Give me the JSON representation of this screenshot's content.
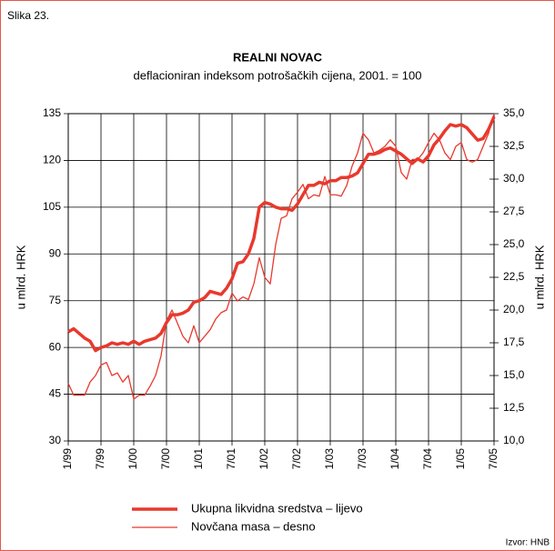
{
  "chart_data": {
    "type": "line",
    "figure_label": "Slika 23.",
    "title": "REALNI NOVAC",
    "subtitle": "deflacioniran indeksom potrošačkih cijena, 2001. = 100",
    "ylabel": "u mlrd. HRK",
    "y2label": "u mlrd. HRK",
    "source": "Izvor: HNB",
    "categories": [
      "1/99",
      null,
      null,
      null,
      null,
      null,
      "7/99",
      null,
      null,
      null,
      null,
      null,
      "1/00",
      null,
      null,
      null,
      null,
      null,
      "7/00",
      null,
      null,
      null,
      null,
      null,
      "1/01",
      null,
      null,
      null,
      null,
      null,
      "7/01",
      null,
      null,
      null,
      null,
      null,
      "1/02",
      null,
      null,
      null,
      null,
      null,
      "7/02",
      null,
      null,
      null,
      null,
      null,
      "1/03",
      null,
      null,
      null,
      null,
      null,
      "7/03",
      null,
      null,
      null,
      null,
      null,
      "1/04",
      null,
      null,
      null,
      null,
      null,
      "7/04",
      null,
      null,
      null,
      null,
      null,
      "1/05",
      null,
      null,
      null,
      null,
      null,
      "7/05"
    ],
    "ylim": [
      30,
      135
    ],
    "yticks": [
      30,
      45,
      60,
      75,
      90,
      105,
      120,
      135
    ],
    "y2lim": [
      10,
      35
    ],
    "y2ticks": [
      {
        "value": 10,
        "label": "10,0"
      },
      {
        "value": 12.5,
        "label": "12,5"
      },
      {
        "value": 15,
        "label": "15,0"
      },
      {
        "value": 17.5,
        "label": "17,5"
      },
      {
        "value": 20,
        "label": "20,0"
      },
      {
        "value": 22.5,
        "label": "22,5"
      },
      {
        "value": 25,
        "label": "25,0"
      },
      {
        "value": 27.5,
        "label": "27,5"
      },
      {
        "value": 30,
        "label": "30,0"
      },
      {
        "value": 32.5,
        "label": "32,5"
      },
      {
        "value": 35,
        "label": "35,0"
      }
    ],
    "grid": true,
    "legend": "bottom",
    "series": [
      {
        "name": "Ukupna likvidna sredstva – lijevo",
        "color": "#e8392d",
        "axis": "y",
        "values": [
          65,
          66,
          64.5,
          63,
          62,
          59,
          60,
          60.5,
          61.5,
          61,
          61.5,
          61,
          62,
          61,
          62,
          62.5,
          63,
          64.5,
          68,
          70.5,
          70.5,
          71,
          72,
          74.5,
          75,
          76,
          78,
          77.5,
          77,
          79,
          82,
          87,
          87.5,
          90,
          95,
          105,
          106.5,
          106,
          105,
          104.5,
          104.5,
          104,
          106,
          109,
          112,
          112,
          113,
          112.5,
          113.5,
          113.5,
          114.5,
          114.5,
          115,
          116,
          119,
          122,
          122,
          122.5,
          123.5,
          124,
          123,
          122,
          120.5,
          119,
          120.5,
          119.5,
          121.5,
          125,
          127,
          129.5,
          131.5,
          131,
          131.5,
          130.5,
          128.5,
          126.5,
          127,
          130,
          134
        ]
      },
      {
        "name": "Novčana masa – desno",
        "color": "#e8392d",
        "axis": "y2",
        "values": [
          14.4,
          13.5,
          13.5,
          13.5,
          14.5,
          15,
          15.8,
          16,
          15,
          15.2,
          14.5,
          15,
          13.2,
          13.5,
          13.5,
          14.2,
          15,
          16.5,
          19.2,
          20,
          19,
          18,
          17.5,
          18.8,
          17.5,
          18,
          18.5,
          19.3,
          19.8,
          20,
          21.3,
          20.7,
          21,
          20.8,
          22,
          24,
          22.5,
          22,
          25,
          27,
          27.2,
          28.5,
          29,
          29.6,
          28.5,
          28.8,
          28.7,
          30.2,
          28.8,
          28.8,
          28.7,
          29.5,
          31,
          32,
          33.5,
          33,
          32,
          32.2,
          32.5,
          33,
          32.5,
          30.5,
          30,
          31.5,
          31.5,
          32,
          32.8,
          33.5,
          33,
          32,
          31.5,
          32.5,
          32.8,
          31.5,
          31.3,
          31.5,
          32.5,
          33.5,
          35
        ]
      }
    ]
  }
}
